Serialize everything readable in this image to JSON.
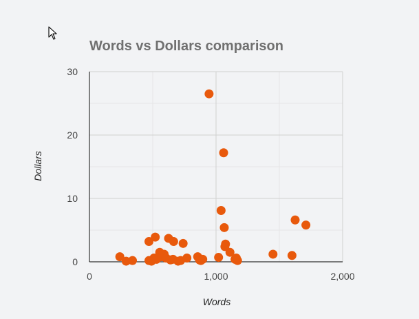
{
  "colors": {
    "background": "#f2f3f5",
    "point": "#e8590c",
    "gridline": "#d0d0d0",
    "minor_gridline": "#e6e6e6",
    "axis": "#333333",
    "title": "#707070"
  },
  "icons": {
    "cursor": "mouse-pointer-icon"
  },
  "chart_data": {
    "type": "scatter",
    "title": "Words vs Dollars comparison",
    "xlabel": "Words",
    "ylabel": "Dollars",
    "xlim": [
      0,
      2000
    ],
    "ylim": [
      0,
      30
    ],
    "x_ticks": [
      0,
      1000,
      2000
    ],
    "x_tick_labels": [
      "0",
      "1,000",
      "2,000"
    ],
    "y_ticks": [
      0,
      10,
      20,
      30
    ],
    "y_tick_labels": [
      "0",
      "10",
      "20",
      "30"
    ],
    "grid": true,
    "legend": "none",
    "points": [
      {
        "x": 945,
        "y": 26.5
      },
      {
        "x": 1060,
        "y": 17.2
      },
      {
        "x": 1040,
        "y": 8.1
      },
      {
        "x": 1065,
        "y": 5.4
      },
      {
        "x": 1075,
        "y": 2.8
      },
      {
        "x": 1070,
        "y": 2.4
      },
      {
        "x": 1110,
        "y": 1.5
      },
      {
        "x": 1020,
        "y": 0.7
      },
      {
        "x": 1150,
        "y": 0.4
      },
      {
        "x": 1170,
        "y": 0.2
      },
      {
        "x": 1160,
        "y": 0.6
      },
      {
        "x": 1450,
        "y": 1.2
      },
      {
        "x": 1600,
        "y": 1.0
      },
      {
        "x": 1625,
        "y": 6.6
      },
      {
        "x": 1710,
        "y": 5.8
      },
      {
        "x": 240,
        "y": 0.8
      },
      {
        "x": 290,
        "y": 0.1
      },
      {
        "x": 340,
        "y": 0.2
      },
      {
        "x": 470,
        "y": 3.2
      },
      {
        "x": 520,
        "y": 3.9
      },
      {
        "x": 470,
        "y": 0.2
      },
      {
        "x": 490,
        "y": 0.1
      },
      {
        "x": 510,
        "y": 0.6
      },
      {
        "x": 530,
        "y": 0.4
      },
      {
        "x": 555,
        "y": 1.5
      },
      {
        "x": 570,
        "y": 0.8
      },
      {
        "x": 590,
        "y": 1.2
      },
      {
        "x": 605,
        "y": 0.6
      },
      {
        "x": 625,
        "y": 3.7
      },
      {
        "x": 640,
        "y": 0.3
      },
      {
        "x": 665,
        "y": 3.2
      },
      {
        "x": 660,
        "y": 0.4
      },
      {
        "x": 700,
        "y": 0.1
      },
      {
        "x": 720,
        "y": 0.2
      },
      {
        "x": 740,
        "y": 2.9
      },
      {
        "x": 770,
        "y": 0.6
      },
      {
        "x": 855,
        "y": 0.8
      },
      {
        "x": 870,
        "y": 0.3
      },
      {
        "x": 880,
        "y": 0.2
      },
      {
        "x": 895,
        "y": 0.4
      }
    ]
  }
}
